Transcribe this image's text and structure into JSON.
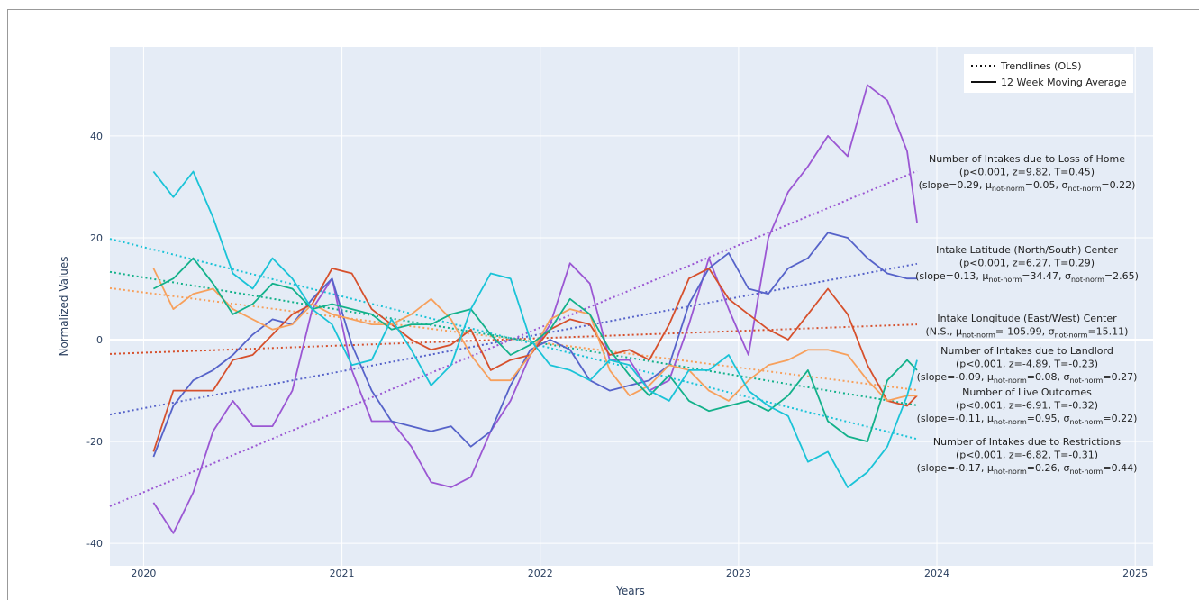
{
  "chart_data": {
    "type": "line",
    "x_label": "Years",
    "y_label": "Normalized Values",
    "xlim": [
      2019.83,
      2025.09
    ],
    "ylim": [
      -44.4,
      57.5
    ],
    "xticks": [
      2020,
      2021,
      2022,
      2023,
      2024,
      2025
    ],
    "yticks": [
      -40,
      -20,
      0,
      20,
      40
    ],
    "grid": true,
    "legend": {
      "trendlines": "Trendlines (OLS)",
      "moving_average": "12 Week Moving Average"
    },
    "x": [
      2020.05,
      2020.15,
      2020.25,
      2020.35,
      2020.45,
      2020.55,
      2020.65,
      2020.75,
      2020.85,
      2020.95,
      2021.05,
      2021.15,
      2021.25,
      2021.35,
      2021.45,
      2021.55,
      2021.65,
      2021.75,
      2021.85,
      2021.95,
      2022.05,
      2022.15,
      2022.25,
      2022.35,
      2022.45,
      2022.55,
      2022.65,
      2022.75,
      2022.85,
      2022.95,
      2023.05,
      2023.15,
      2023.25,
      2023.35,
      2023.45,
      2023.55,
      2023.65,
      2023.75,
      2023.85,
      2023.9
    ],
    "series": [
      {
        "color": "#9b57d3",
        "values": [
          -32,
          -38,
          -30,
          -18,
          -12,
          -17,
          -17,
          -10,
          6,
          12,
          -6,
          -16,
          -16,
          -21,
          -28,
          -29,
          -27,
          -18,
          -12,
          -3,
          3,
          15,
          11,
          -4,
          -4,
          -10,
          -8,
          3,
          16,
          6,
          -3,
          20,
          29,
          34,
          40,
          36,
          50,
          47,
          37,
          23
        ]
      },
      {
        "color": "#5663c9",
        "values": [
          -23,
          -13,
          -8,
          -6,
          -3,
          1,
          4,
          3,
          8,
          12,
          -1,
          -10,
          -16,
          -17,
          -18,
          -17,
          -21,
          -18,
          -9,
          -2,
          0,
          -2,
          -8,
          -10,
          -9,
          -8,
          -5,
          7,
          14,
          17,
          10,
          9,
          14,
          16,
          21,
          20,
          16,
          13,
          12,
          12
        ]
      },
      {
        "color": "#d6502c",
        "values": [
          -22,
          -10,
          -10,
          -10,
          -4,
          -3,
          1,
          5,
          7,
          14,
          13,
          6,
          3,
          0,
          -2,
          -1,
          2,
          -6,
          -4,
          -3,
          2,
          4,
          3,
          -3,
          -2,
          -4,
          3,
          12,
          14,
          8,
          5,
          2,
          0,
          5,
          10,
          5,
          -5,
          -12,
          -13,
          -11
        ]
      },
      {
        "color": "#f7a05c",
        "values": [
          14,
          6,
          9,
          10,
          6,
          4,
          2,
          3,
          7,
          5,
          4,
          3,
          3,
          5,
          8,
          4,
          -3,
          -8,
          -8,
          -3,
          4,
          6,
          5,
          -6,
          -11,
          -9,
          -5,
          -6,
          -10,
          -12,
          -8,
          -5,
          -4,
          -2,
          -2,
          -3,
          -8,
          -12,
          -11,
          -11
        ]
      },
      {
        "color": "#13b18a",
        "values": [
          10,
          12,
          16,
          11,
          5,
          7,
          11,
          10,
          6,
          7,
          6,
          5,
          2,
          3,
          3,
          5,
          6,
          1,
          -3,
          -1,
          2,
          8,
          5,
          -2,
          -7,
          -11,
          -7,
          -12,
          -14,
          -13,
          -12,
          -14,
          -11,
          -6,
          -16,
          -19,
          -20,
          -8,
          -4,
          -6
        ]
      },
      {
        "color": "#1ac3d7",
        "values": [
          33,
          28,
          33,
          24,
          13,
          10,
          16,
          12,
          6,
          3,
          -5,
          -4,
          4,
          -2,
          -9,
          -5,
          6,
          13,
          12,
          0,
          -5,
          -6,
          -8,
          -4,
          -5,
          -10,
          -12,
          -6,
          -6,
          -3,
          -10,
          -13,
          -15,
          -24,
          -22,
          -29,
          -26,
          -21,
          -11,
          -4
        ]
      }
    ],
    "trendlines": [
      {
        "color": "#9b57d3",
        "x": [
          2019.83,
          2023.9
        ],
        "values": [
          -32.7,
          33.1
        ]
      },
      {
        "color": "#5663c9",
        "x": [
          2019.83,
          2023.9
        ],
        "values": [
          -14.7,
          14.9
        ]
      },
      {
        "color": "#d6502c",
        "x": [
          2019.83,
          2023.9
        ],
        "values": [
          -2.8,
          3.0
        ]
      },
      {
        "color": "#f7a05c",
        "x": [
          2019.83,
          2023.9
        ],
        "values": [
          10.1,
          -9.9
        ]
      },
      {
        "color": "#13b18a",
        "x": [
          2019.83,
          2023.9
        ],
        "values": [
          13.3,
          -12.9
        ]
      },
      {
        "color": "#1ac3d7",
        "x": [
          2019.83,
          2023.9
        ],
        "values": [
          19.8,
          -19.5
        ]
      }
    ],
    "annotations": [
      {
        "lines": [
          [
            "Number of Intakes due to Loss of Home"
          ],
          [
            "(p<0.001, z=9.82, T=0.45)"
          ],
          [
            "(slope=0.29, μ",
            "not-norm",
            "=0.05, σ",
            "not-norm",
            "=0.22)"
          ]
        ]
      },
      {
        "lines": [
          [
            "Intake Latitude (North/South) Center"
          ],
          [
            "(p<0.001, z=6.27, T=0.29)"
          ],
          [
            "(slope=0.13, μ",
            "not-norm",
            "=34.47, σ",
            "not-norm",
            "=2.65)"
          ]
        ]
      },
      {
        "lines": [
          [
            "Intake Longitude (East/West) Center"
          ],
          [
            "(N.S., μ",
            "not-norm",
            "=-105.99, σ",
            "not-norm",
            "=15.11)"
          ]
        ]
      },
      {
        "lines": [
          [
            "Number of Intakes due to Landlord"
          ],
          [
            "(p<0.001, z=-4.89, T=-0.23)"
          ],
          [
            "(slope=-0.09, μ",
            "not-norm",
            "=0.08, σ",
            "not-norm",
            "=0.27)"
          ]
        ]
      },
      {
        "lines": [
          [
            "Number of Live Outcomes"
          ],
          [
            "(p<0.001, z=-6.91, T=-0.32)"
          ],
          [
            "(slope=-0.11, μ",
            "not-norm",
            "=0.95, σ",
            "not-norm",
            "=0.22)"
          ]
        ]
      },
      {
        "lines": [
          [
            "Number of Intakes due to Restrictions"
          ],
          [
            "(p<0.001, z=-6.82, T=-0.31)"
          ],
          [
            "(slope=-0.17, μ",
            "not-norm",
            "=0.26, σ",
            "not-norm",
            "=0.44)"
          ]
        ]
      }
    ]
  }
}
